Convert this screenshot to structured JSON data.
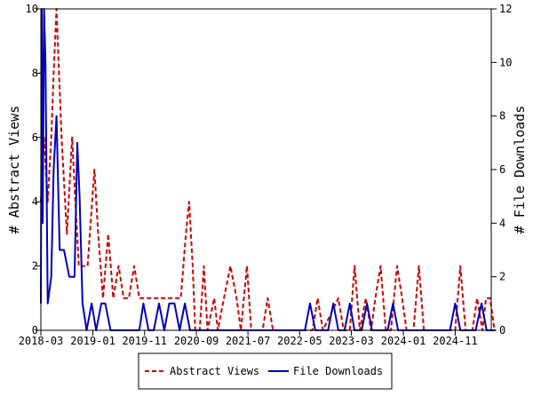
{
  "chart_data": {
    "type": "line",
    "title": "",
    "x_tick_labels": [
      "2018-03",
      "2019-01",
      "2019-11",
      "2020-09",
      "2021-07",
      "2022-05",
      "2023-03",
      "2024-01",
      "2024-11"
    ],
    "x_range": [
      "2018-03",
      "2025-06"
    ],
    "y_left": {
      "label": "# Abstract Views",
      "range": [
        0,
        10
      ],
      "ticks": [
        0,
        2,
        4,
        6,
        8,
        10
      ]
    },
    "y_right": {
      "label": "# File Downloads",
      "range": [
        0,
        12
      ],
      "ticks": [
        0,
        2,
        4,
        6,
        8,
        10,
        12
      ]
    },
    "grid": false,
    "legend_position": "bottom",
    "series": [
      {
        "name": "Abstract Views",
        "axis": "left",
        "color": "#cc0000",
        "style": "dashed",
        "points": [
          [
            "2018-03-01",
            4
          ],
          [
            "2018-03-20",
            6
          ],
          [
            "2018-04-10",
            4
          ],
          [
            "2018-05-01",
            6
          ],
          [
            "2018-05-15",
            8
          ],
          [
            "2018-06-01",
            10
          ],
          [
            "2018-07-01",
            6
          ],
          [
            "2018-08-01",
            3
          ],
          [
            "2018-09-01",
            6
          ],
          [
            "2018-09-20",
            4
          ],
          [
            "2018-10-10",
            2
          ],
          [
            "2018-12-01",
            2
          ],
          [
            "2019-01-10",
            5
          ],
          [
            "2019-02-01",
            3
          ],
          [
            "2019-03-01",
            1
          ],
          [
            "2019-04-01",
            3
          ],
          [
            "2019-05-01",
            1
          ],
          [
            "2019-06-01",
            2
          ],
          [
            "2019-07-01",
            1
          ],
          [
            "2019-08-01",
            1
          ],
          [
            "2019-09-01",
            2
          ],
          [
            "2019-10-01",
            1
          ],
          [
            "2020-06-01",
            1
          ],
          [
            "2020-07-01",
            3
          ],
          [
            "2020-07-20",
            4
          ],
          [
            "2020-08-10",
            2
          ],
          [
            "2020-08-25",
            0
          ],
          [
            "2020-09-20",
            0
          ],
          [
            "2020-10-15",
            2
          ],
          [
            "2020-11-05",
            0
          ],
          [
            "2020-12-15",
            1
          ],
          [
            "2021-01-05",
            0
          ],
          [
            "2021-02-10",
            1
          ],
          [
            "2021-03-20",
            2
          ],
          [
            "2021-04-25",
            1
          ],
          [
            "2021-05-20",
            0
          ],
          [
            "2021-06-25",
            2
          ],
          [
            "2021-07-20",
            0
          ],
          [
            "2021-09-25",
            0
          ],
          [
            "2021-10-25",
            1
          ],
          [
            "2021-11-25",
            0
          ],
          [
            "2022-07-15",
            0
          ],
          [
            "2022-08-15",
            1
          ],
          [
            "2022-09-15",
            0
          ],
          [
            "2022-12-15",
            1
          ],
          [
            "2023-01-15",
            0
          ],
          [
            "2023-02-20",
            0
          ],
          [
            "2023-03-20",
            2
          ],
          [
            "2023-04-20",
            0
          ],
          [
            "2023-05-25",
            1
          ],
          [
            "2023-06-25",
            0
          ],
          [
            "2023-07-20",
            1
          ],
          [
            "2023-08-20",
            2
          ],
          [
            "2023-09-20",
            0
          ],
          [
            "2023-10-20",
            0
          ],
          [
            "2023-11-25",
            2
          ],
          [
            "2023-12-25",
            1
          ],
          [
            "2024-01-20",
            0
          ],
          [
            "2024-03-01",
            0
          ],
          [
            "2024-04-01",
            2
          ],
          [
            "2024-05-01",
            0
          ],
          [
            "2024-11-01",
            0
          ],
          [
            "2024-12-01",
            2
          ],
          [
            "2025-01-01",
            0
          ],
          [
            "2025-02-10",
            0
          ],
          [
            "2025-03-10",
            1
          ],
          [
            "2025-04-10",
            0
          ],
          [
            "2025-05-01",
            1
          ],
          [
            "2025-05-25",
            1
          ],
          [
            "2025-06-20",
            0
          ]
        ]
      },
      {
        "name": "File Downloads",
        "axis": "right",
        "color": "#0000bb",
        "style": "solid",
        "points": [
          [
            "2018-03-01",
            1
          ],
          [
            "2018-03-06",
            12
          ],
          [
            "2018-03-12",
            4
          ],
          [
            "2018-03-20",
            12
          ],
          [
            "2018-03-28",
            10
          ],
          [
            "2018-04-10",
            1
          ],
          [
            "2018-05-01",
            2
          ],
          [
            "2018-05-15",
            6
          ],
          [
            "2018-06-01",
            8
          ],
          [
            "2018-06-20",
            3
          ],
          [
            "2018-07-15",
            3
          ],
          [
            "2018-08-15",
            2
          ],
          [
            "2018-09-15",
            2
          ],
          [
            "2018-10-01",
            7
          ],
          [
            "2018-10-15",
            5
          ],
          [
            "2018-11-01",
            1
          ],
          [
            "2018-11-25",
            0
          ],
          [
            "2018-12-25",
            1
          ],
          [
            "2019-01-20",
            0
          ],
          [
            "2019-02-20",
            1
          ],
          [
            "2019-03-15",
            1
          ],
          [
            "2019-04-15",
            0
          ],
          [
            "2019-10-01",
            0
          ],
          [
            "2019-10-25",
            1
          ],
          [
            "2019-11-25",
            0
          ],
          [
            "2019-12-25",
            0
          ],
          [
            "2020-01-25",
            1
          ],
          [
            "2020-02-25",
            0
          ],
          [
            "2020-03-25",
            1
          ],
          [
            "2020-04-25",
            1
          ],
          [
            "2020-05-25",
            0
          ],
          [
            "2020-06-25",
            1
          ],
          [
            "2020-07-25",
            0
          ],
          [
            "2022-06-01",
            0
          ],
          [
            "2022-07-01",
            1
          ],
          [
            "2022-08-01",
            0
          ],
          [
            "2022-10-15",
            0
          ],
          [
            "2022-11-15",
            1
          ],
          [
            "2022-12-15",
            0
          ],
          [
            "2023-01-20",
            0
          ],
          [
            "2023-02-20",
            1
          ],
          [
            "2023-03-20",
            0
          ],
          [
            "2023-05-01",
            0
          ],
          [
            "2023-06-01",
            1
          ],
          [
            "2023-07-01",
            0
          ],
          [
            "2023-10-01",
            0
          ],
          [
            "2023-11-01",
            1
          ],
          [
            "2023-12-01",
            0
          ],
          [
            "2024-10-01",
            0
          ],
          [
            "2024-11-01",
            1
          ],
          [
            "2024-12-01",
            0
          ],
          [
            "2025-03-01",
            0
          ],
          [
            "2025-04-05",
            1
          ],
          [
            "2025-05-05",
            0
          ],
          [
            "2025-06-25",
            0
          ]
        ]
      }
    ]
  }
}
